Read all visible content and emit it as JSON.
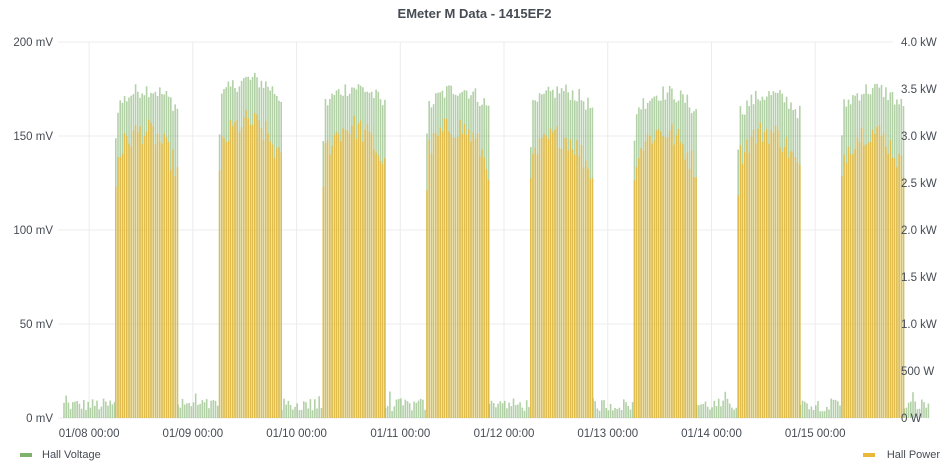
{
  "chart_data": {
    "type": "bar",
    "title": "EMeter M Data - 1415EF2",
    "y_left": {
      "ticks": [
        "0 mV",
        "50 mV",
        "100 mV",
        "150 mV",
        "200 mV"
      ],
      "range": [
        0,
        200
      ],
      "unit": "mV"
    },
    "y_right": {
      "ticks": [
        "0 W",
        "500 W",
        "1.0 kW",
        "1.5 kW",
        "2.0 kW",
        "2.5 kW",
        "3.0 kW",
        "3.5 kW",
        "4.0 kW"
      ],
      "range": [
        0,
        4000
      ],
      "unit": "W"
    },
    "x_ticks": [
      "01/08 00:00",
      "01/09 00:00",
      "01/10 00:00",
      "01/11 00:00",
      "01/12 00:00",
      "01/13 00:00",
      "01/14 00:00",
      "01/15 00:00"
    ],
    "x_range_days": [
      -0.3,
      7.75
    ],
    "grid": true,
    "series": [
      {
        "name": "Hall Voltage",
        "axis": "left",
        "color": "#7eb26d",
        "segments": [
          {
            "start": -0.25,
            "end": 0.25,
            "level": 7
          },
          {
            "start": 0.25,
            "end": 0.85,
            "level": 175
          },
          {
            "start": 0.85,
            "end": 1.25,
            "level": 7
          },
          {
            "start": 1.25,
            "end": 1.85,
            "level": 180
          },
          {
            "start": 1.85,
            "end": 2.25,
            "level": 7
          },
          {
            "start": 2.25,
            "end": 2.85,
            "level": 176
          },
          {
            "start": 2.85,
            "end": 3.25,
            "level": 7
          },
          {
            "start": 3.25,
            "end": 3.85,
            "level": 175
          },
          {
            "start": 3.85,
            "end": 4.25,
            "level": 7
          },
          {
            "start": 4.25,
            "end": 4.85,
            "level": 174
          },
          {
            "start": 4.85,
            "end": 5.25,
            "level": 7
          },
          {
            "start": 5.25,
            "end": 5.85,
            "level": 173
          },
          {
            "start": 5.85,
            "end": 6.25,
            "level": 7
          },
          {
            "start": 6.25,
            "end": 6.85,
            "level": 172
          },
          {
            "start": 6.85,
            "end": 7.25,
            "level": 7
          },
          {
            "start": 7.25,
            "end": 7.85,
            "level": 175
          },
          {
            "start": 7.85,
            "end": 8.1,
            "level": 7
          }
        ]
      },
      {
        "name": "Hall Power",
        "axis": "right",
        "color": "#eab839",
        "segments": [
          {
            "start": 0.25,
            "end": 0.85,
            "level": 3050
          },
          {
            "start": 1.25,
            "end": 1.85,
            "level": 3150
          },
          {
            "start": 2.25,
            "end": 2.85,
            "level": 3100
          },
          {
            "start": 3.25,
            "end": 3.85,
            "level": 3100
          },
          {
            "start": 4.25,
            "end": 4.85,
            "level": 3000
          },
          {
            "start": 5.25,
            "end": 5.85,
            "level": 3050
          },
          {
            "start": 6.25,
            "end": 6.85,
            "level": 3050
          },
          {
            "start": 7.25,
            "end": 7.85,
            "level": 3050
          }
        ]
      }
    ],
    "legend": {
      "left": "Hall Voltage",
      "right": "Hall Power",
      "placement": "bottom"
    }
  }
}
